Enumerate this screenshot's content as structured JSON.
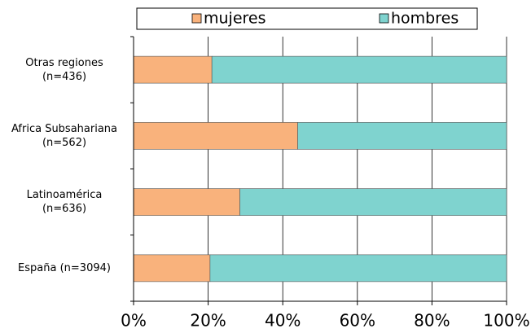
{
  "chart_data": {
    "type": "stacked-barh",
    "categories": [
      "Otras regiones\n(n=436)",
      "Africa Subsahariana\n(n=562)",
      "Latinoamérica\n(n=636)",
      "España (n=3094)"
    ],
    "series": [
      {
        "name": "mujeres",
        "color": "#f9b27c",
        "values": [
          21,
          44,
          28.5,
          20.5
        ]
      },
      {
        "name": "hombres",
        "color": "#7fd3cf",
        "values": [
          79,
          56,
          71.5,
          79.5
        ]
      }
    ],
    "xlim": [
      0,
      100
    ],
    "xticks": [
      {
        "value": 0,
        "label": "0%"
      },
      {
        "value": 20,
        "label": "20%"
      },
      {
        "value": 40,
        "label": "40%"
      },
      {
        "value": 60,
        "label": "60%"
      },
      {
        "value": 80,
        "label": "80%"
      },
      {
        "value": 100,
        "label": "100%"
      }
    ],
    "grid": true
  }
}
